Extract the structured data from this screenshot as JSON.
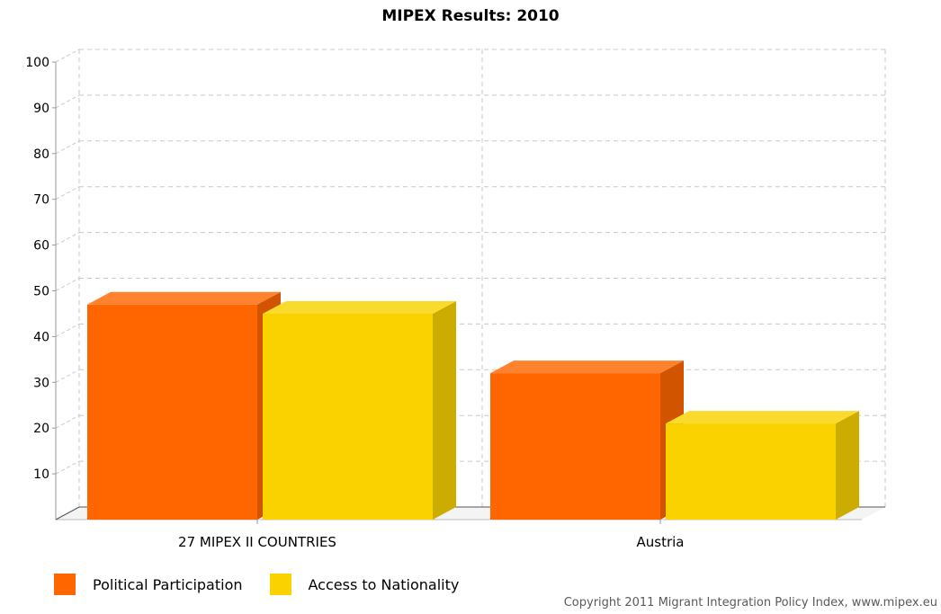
{
  "chart_data": {
    "type": "bar",
    "title": "MIPEX Results: 2010",
    "categories": [
      "27 MIPEX II COUNTRIES",
      "Austria"
    ],
    "series": [
      {
        "name": "Political Participation",
        "values": [
          47,
          32
        ],
        "color": "#ff6600"
      },
      {
        "name": "Access to Nationality",
        "values": [
          45,
          21
        ],
        "color": "#fad200"
      }
    ],
    "y_ticks": [
      10,
      20,
      30,
      40,
      50,
      60,
      70,
      80,
      90,
      100
    ],
    "ylim": [
      0,
      100
    ],
    "grid": true,
    "legend_position": "bottom-left"
  },
  "footer": {
    "copyright": "Copyright 2011 Migrant Integration Policy Index, www.mipex.eu"
  }
}
